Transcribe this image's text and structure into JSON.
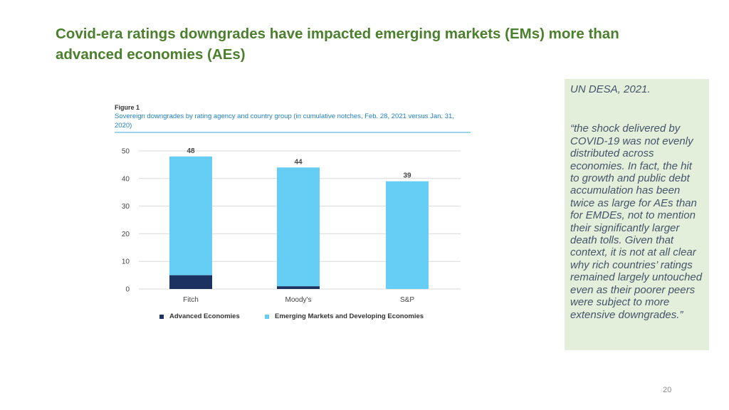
{
  "slide": {
    "title": "Covid-era ratings downgrades have impacted emerging markets (EMs) more than advanced economies (AEs)",
    "page_number": "20"
  },
  "quote": {
    "source": "UN DESA, 2021.",
    "text": "“the shock delivered by COVID-19 was not evenly distributed across economies. In fact, the hit to growth and public debt accumulation has been twice as large for AEs than for EMDEs, not to mention their significantly larger death tolls. Given that context, it is not at all clear why rich countries’ ratings remained largely untouched even as their poorer peers were subject to more extensive downgrades.”"
  },
  "figure": {
    "label": "Figure 1",
    "caption": "Sovereign downgrades by rating agency and country group (in cumulative notches, Feb. 28, 2021 versus Jan. 31, 2020)"
  },
  "colors": {
    "title": "#4a7f2c",
    "advanced": "#1c3261",
    "emerging": "#66cdf4",
    "grid": "#d9d9d9"
  },
  "chart_data": {
    "type": "bar",
    "stacked": true,
    "title": "Sovereign downgrades by rating agency and country group (in cumulative notches, Feb. 28, 2021 versus Jan. 31, 2020)",
    "categories": [
      "Fitch",
      "Moody's",
      "S&P"
    ],
    "series": [
      {
        "name": "Advanced Economies",
        "values": [
          5,
          1,
          0
        ]
      },
      {
        "name": "Emerging Markets and Developing Economies",
        "values": [
          43,
          43,
          39
        ]
      }
    ],
    "totals": [
      "48",
      "44",
      "39"
    ],
    "yticks": [
      "0",
      "10",
      "20",
      "30",
      "40",
      "50"
    ],
    "ylim": [
      0,
      50
    ],
    "xlabel": "",
    "ylabel": "",
    "legend": [
      "Advanced Economies",
      "Emerging Markets and Developing Economies"
    ]
  }
}
